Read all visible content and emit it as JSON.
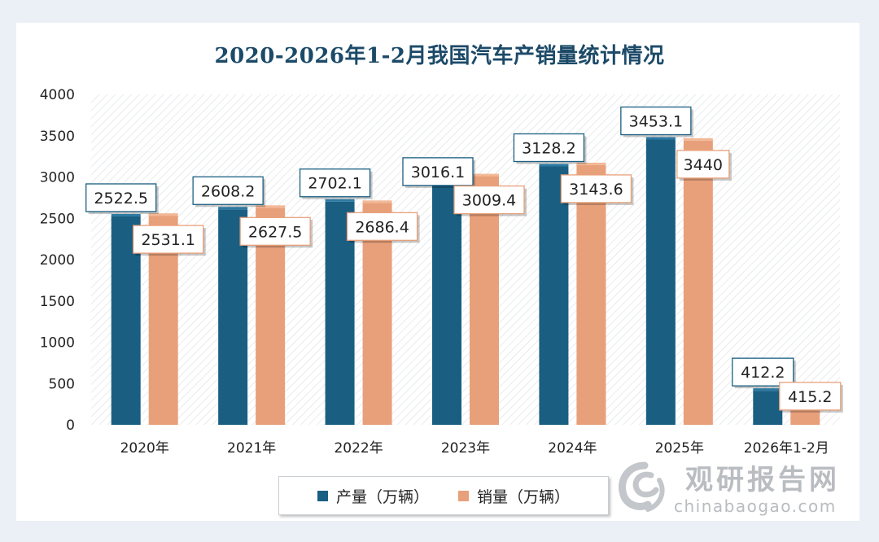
{
  "chart_data": {
    "type": "bar",
    "title": "2020-2026年1-2月我国汽车产销量统计情况",
    "categories": [
      "2020年",
      "2021年",
      "2022年",
      "2023年",
      "2024年",
      "2025年",
      "2026年1-2月"
    ],
    "series": [
      {
        "name": "产量（万辆）",
        "color": "#1a5f82",
        "values": [
          2522.5,
          2608.2,
          2702.1,
          3016.1,
          3128.2,
          3453.1,
          412.2
        ],
        "labels": [
          "2522.5",
          "2608.2",
          "2702.1",
          "3016.1",
          "3128.2",
          "3453.1",
          "412.2"
        ]
      },
      {
        "name": "销量（万辆）",
        "color": "#e8a07a",
        "values": [
          2531.1,
          2627.5,
          2686.4,
          3009.4,
          3143.6,
          3440,
          415.2
        ],
        "labels": [
          "2531.1",
          "2627.5",
          "2686.4",
          "3009.4",
          "3143.6",
          "3440",
          "415.2"
        ]
      }
    ],
    "ylim": [
      0,
      4000
    ],
    "yticks": [
      "0",
      "500",
      "1000",
      "1500",
      "2000",
      "2500",
      "3000",
      "3500",
      "4000"
    ],
    "xlabel": "",
    "ylabel": "",
    "grid": false,
    "legend": "bottom"
  },
  "watermark": {
    "brand": "观研报告网",
    "url": "chinabaogao.com"
  }
}
